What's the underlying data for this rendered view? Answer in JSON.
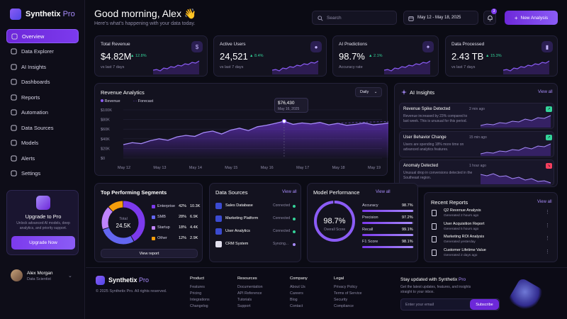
{
  "brand": {
    "name": "Synthetix",
    "suffix": "Pro"
  },
  "sidebar": {
    "items": [
      {
        "label": "Overview",
        "icon": "grid-icon"
      },
      {
        "label": "Data Explorer",
        "icon": "folder-icon"
      },
      {
        "label": "AI Insights",
        "icon": "sparkle-icon"
      },
      {
        "label": "Dashboards",
        "icon": "dashboard-icon"
      },
      {
        "label": "Reports",
        "icon": "document-icon"
      },
      {
        "label": "Automation",
        "icon": "gear-icon"
      },
      {
        "label": "Data Sources",
        "icon": "database-icon"
      },
      {
        "label": "Models",
        "icon": "cube-icon"
      },
      {
        "label": "Alerts",
        "icon": "alert-icon"
      },
      {
        "label": "Settings",
        "icon": "settings-icon"
      }
    ],
    "upgrade": {
      "title": "Upgrade to Pro",
      "text": "Unlock advanced AI models, deep analytics, and priority support.",
      "button": "Upgrade Now"
    },
    "user": {
      "name": "Alex Morgan",
      "role": "Data Scientist"
    }
  },
  "header": {
    "greeting": "Good morning, Alex 👋",
    "subtitle": "Here's what's happening with your data today.",
    "search_placeholder": "Search",
    "date_range": "May 12 - May 18, 2025",
    "notifications": "3",
    "new_analysis": "New Analysis"
  },
  "kpis": [
    {
      "label": "Total Revenue",
      "value": "$4.82M",
      "delta": "12.8%",
      "note": "vs last 7 days",
      "icon": "dollar-icon"
    },
    {
      "label": "Active Users",
      "value": "24,521",
      "delta": "8.4%",
      "note": "vs last 7 days",
      "icon": "users-icon"
    },
    {
      "label": "AI Predictions",
      "value": "98.7%",
      "delta": "2.1%",
      "note": "Accuracy rate",
      "icon": "sparkle-icon"
    },
    {
      "label": "Data Processed",
      "value": "2.43 TB",
      "delta": "15.3%",
      "note": "vs last 7 days",
      "icon": "chart-icon"
    }
  ],
  "revenue": {
    "title": "Revenue Analytics",
    "legend_revenue": "Revenue",
    "legend_forecast": "Forecast",
    "period": "Daily",
    "tooltip_value": "$76,430",
    "tooltip_date": "May 16, 2025"
  },
  "chart_data": {
    "type": "area",
    "title": "Revenue Analytics",
    "yticks": [
      "$100K",
      "$80K",
      "$60K",
      "$40K",
      "$20K",
      "$0"
    ],
    "ylim": [
      0,
      100000
    ],
    "xticks": [
      "May 12",
      "May 13",
      "May 14",
      "May 15",
      "May 16",
      "May 17",
      "May 18",
      "May 19"
    ],
    "series": [
      {
        "name": "Revenue",
        "x": [
          0,
          0.25,
          0.5,
          0.75,
          1,
          1.25,
          1.5,
          1.75,
          2,
          2.25,
          2.5,
          2.75,
          3,
          3.25,
          3.5,
          3.75,
          4,
          4.25,
          4.5,
          4.75,
          5,
          5.25,
          5.5,
          5.75,
          6,
          6.25,
          6.5,
          6.75,
          7,
          7.25,
          7.5
        ],
        "values": [
          28000,
          32000,
          30000,
          36000,
          40000,
          37000,
          44000,
          47000,
          45000,
          53000,
          56000,
          50000,
          58000,
          62000,
          57000,
          65000,
          68000,
          72000,
          76430,
          70000,
          73000,
          71000,
          74000,
          69000,
          72000,
          68000,
          70000,
          73000,
          69000,
          71000,
          74000
        ]
      },
      {
        "name": "Forecast",
        "x": [
          6,
          6.5,
          7,
          7.5
        ],
        "values": [
          72000,
          74000,
          75000,
          76000
        ]
      }
    ],
    "grid": true,
    "legend": "top-left"
  },
  "insights": {
    "title": "AI Insights",
    "view_all": "View all",
    "items": [
      {
        "title": "Revenue Spike Detected",
        "time": "2 min ago",
        "text": "Revenue increased by 23% compared to last week. This is unusual for this period.",
        "color": "#34d399"
      },
      {
        "title": "User Behavior Change",
        "time": "15 min ago",
        "text": "Users are spending 18% more time on advanced analytics features.",
        "color": "#34d399"
      },
      {
        "title": "Anomaly Detected",
        "time": "1 hour ago",
        "text": "Unusual drop in conversions detected in the Southeast region.",
        "color": "#f43f5e"
      }
    ]
  },
  "segments": {
    "title": "Top Performing Segments",
    "total_label": "Total",
    "total_value": "24.5K",
    "items": [
      {
        "name": "Enterprise",
        "pct": "42%",
        "value": "10.3K",
        "color": "#7c3aed"
      },
      {
        "name": "SMB",
        "pct": "28%",
        "value": "6.9K",
        "color": "#6366f1"
      },
      {
        "name": "Startup",
        "pct": "18%",
        "value": "4.4K",
        "color": "#c084fc"
      },
      {
        "name": "Other",
        "pct": "12%",
        "value": "2.9K",
        "color": "#f59e0b"
      }
    ],
    "button": "View report"
  },
  "sources": {
    "title": "Data Sources",
    "view_all": "View all",
    "items": [
      {
        "name": "Sales Database",
        "status": "Connected",
        "color": "#34d399"
      },
      {
        "name": "Marketing Platform",
        "status": "Connected",
        "color": "#34d399"
      },
      {
        "name": "User Analytics",
        "status": "Connected",
        "color": "#34d399"
      },
      {
        "name": "CRM System",
        "status": "Syncing...",
        "color": "#a78bfa"
      }
    ]
  },
  "model": {
    "title": "Model Performance",
    "view_all": "View all",
    "score": "98.7%",
    "score_label": "Overall Score",
    "metrics": [
      {
        "name": "Accuracy",
        "value": "98.7%",
        "fill": 0.987
      },
      {
        "name": "Precision",
        "value": "97.2%",
        "fill": 0.972
      },
      {
        "name": "Recall",
        "value": "99.1%",
        "fill": 0.991
      },
      {
        "name": "F1 Score",
        "value": "98.1%",
        "fill": 0.981
      }
    ]
  },
  "reports": {
    "title": "Recent Reports",
    "view_all": "View all",
    "items": [
      {
        "name": "Q2 Revenue Analysis",
        "meta": "Generated 2 hours ago"
      },
      {
        "name": "User Acquisition Report",
        "meta": "Generated 5 hours ago"
      },
      {
        "name": "Marketing ROI Analysis",
        "meta": "Generated yesterday"
      },
      {
        "name": "Customer Lifetime Value",
        "meta": "Generated 2 days ago"
      }
    ]
  },
  "footer": {
    "copyright": "© 2025 Synthetix Pro. All rights reserved.",
    "cols": [
      {
        "head": "Product",
        "links": [
          "Features",
          "Pricing",
          "Integrations",
          "Changelog"
        ]
      },
      {
        "head": "Resources",
        "links": [
          "Documentation",
          "API Reference",
          "Tutorials",
          "Support"
        ]
      },
      {
        "head": "Company",
        "links": [
          "About Us",
          "Careers",
          "Blog",
          "Contact"
        ]
      },
      {
        "head": "Legal",
        "links": [
          "Privacy Policy",
          "Terms of Service",
          "Security",
          "Compliance"
        ]
      }
    ],
    "newsletter_title": "Stay updated with Synthetix",
    "newsletter_pro": "Pro",
    "newsletter_text": "Get the latest updates, features, and insights straight to your inbox.",
    "email_placeholder": "Enter your email",
    "subscribe": "Subscribe"
  }
}
